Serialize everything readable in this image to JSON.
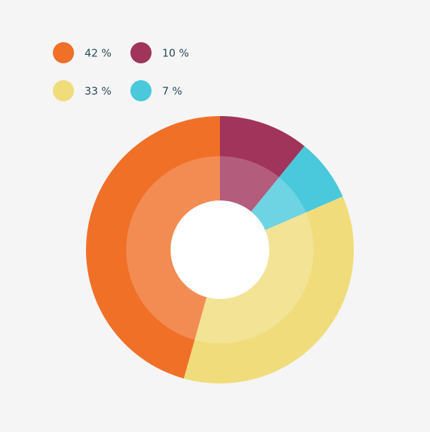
{
  "chart_data": {
    "type": "pie",
    "values": [
      42,
      10,
      33,
      7
    ],
    "value_labels": [
      "42 %",
      "10 %",
      "33 %",
      "7 %"
    ],
    "colors": [
      "#f07028",
      "#a0345a",
      "#f0dc7a",
      "#4ac8dc"
    ]
  }
}
